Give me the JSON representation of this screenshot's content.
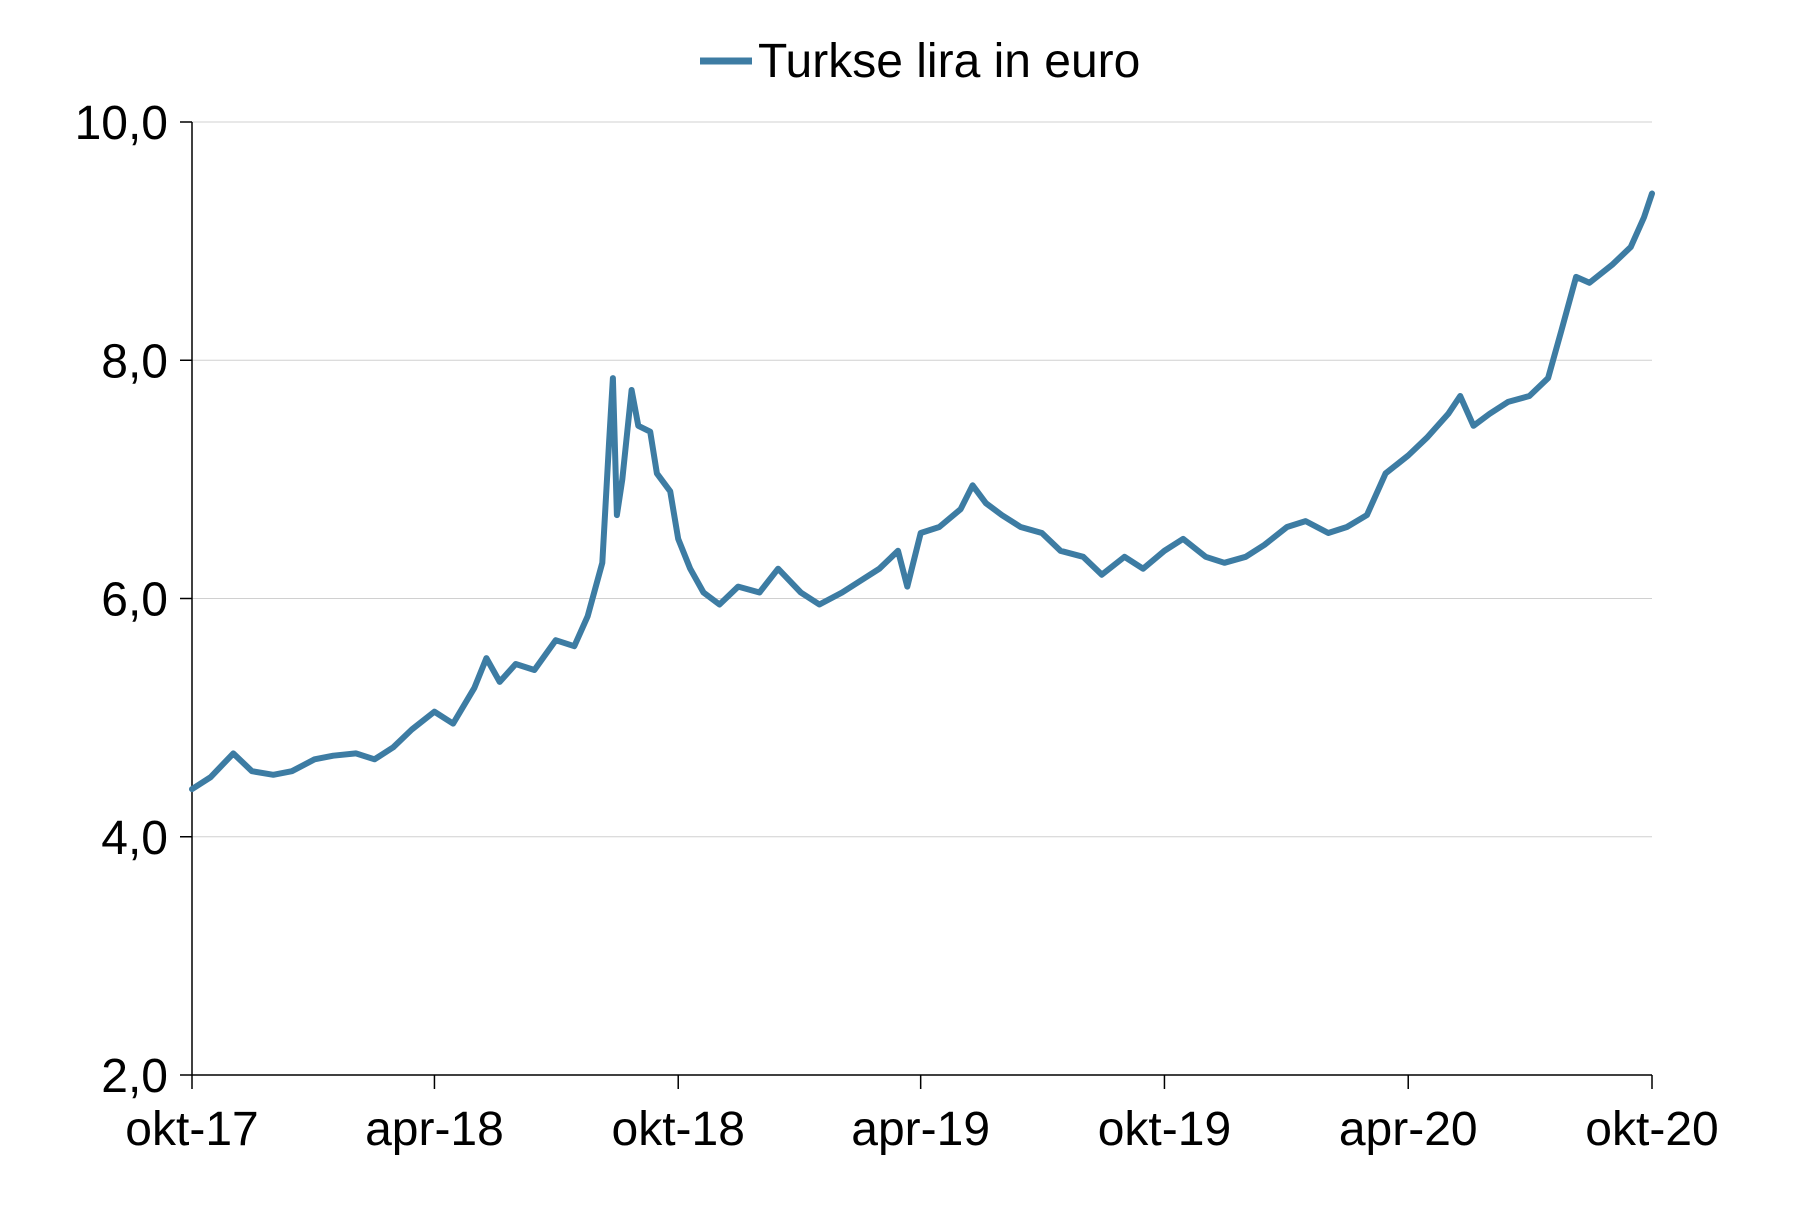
{
  "chart_data": {
    "type": "line",
    "title": "",
    "xlabel": "",
    "ylabel": "",
    "ylim": [
      2.0,
      10.0
    ],
    "yticks": [
      "2,0",
      "4,0",
      "6,0",
      "8,0",
      "10,0"
    ],
    "ytick_values": [
      2,
      4,
      6,
      8,
      10
    ],
    "xlim": [
      "2017-10-01",
      "2020-10-01"
    ],
    "xticks": [
      "okt-17",
      "apr-18",
      "okt-18",
      "apr-19",
      "okt-19",
      "apr-20",
      "okt-20"
    ],
    "xtick_values": [
      "2017-10-01",
      "2018-04-01",
      "2018-10-01",
      "2019-04-01",
      "2019-10-01",
      "2020-04-01",
      "2020-10-01"
    ],
    "grid": true,
    "legend_position": "top-center",
    "series": [
      {
        "name": "Turkse lira in euro",
        "color": "#3d7ca3",
        "x": [
          "2017-10-01",
          "2017-10-15",
          "2017-11-01",
          "2017-11-15",
          "2017-12-01",
          "2017-12-15",
          "2018-01-01",
          "2018-01-15",
          "2018-02-01",
          "2018-02-15",
          "2018-03-01",
          "2018-03-15",
          "2018-04-01",
          "2018-04-15",
          "2018-05-01",
          "2018-05-10",
          "2018-05-20",
          "2018-06-01",
          "2018-06-15",
          "2018-07-01",
          "2018-07-15",
          "2018-07-25",
          "2018-08-05",
          "2018-08-10",
          "2018-08-13",
          "2018-08-16",
          "2018-08-20",
          "2018-08-27",
          "2018-09-01",
          "2018-09-10",
          "2018-09-15",
          "2018-09-25",
          "2018-10-01",
          "2018-10-10",
          "2018-10-20",
          "2018-11-01",
          "2018-11-15",
          "2018-12-01",
          "2018-12-15",
          "2019-01-01",
          "2019-01-15",
          "2019-02-01",
          "2019-02-15",
          "2019-03-01",
          "2019-03-15",
          "2019-03-22",
          "2019-04-01",
          "2019-04-15",
          "2019-05-01",
          "2019-05-10",
          "2019-05-20",
          "2019-06-01",
          "2019-06-15",
          "2019-07-01",
          "2019-07-15",
          "2019-08-01",
          "2019-08-15",
          "2019-09-01",
          "2019-09-15",
          "2019-10-01",
          "2019-10-15",
          "2019-11-01",
          "2019-11-15",
          "2019-12-01",
          "2019-12-15",
          "2020-01-01",
          "2020-01-15",
          "2020-02-01",
          "2020-02-15",
          "2020-03-01",
          "2020-03-15",
          "2020-04-01",
          "2020-04-15",
          "2020-05-01",
          "2020-05-10",
          "2020-05-20",
          "2020-06-01",
          "2020-06-15",
          "2020-07-01",
          "2020-07-15",
          "2020-07-25",
          "2020-08-05",
          "2020-08-15",
          "2020-09-01",
          "2020-09-15",
          "2020-09-25",
          "2020-10-01"
        ],
        "values": [
          4.4,
          4.5,
          4.7,
          4.55,
          4.52,
          4.55,
          4.65,
          4.68,
          4.7,
          4.65,
          4.75,
          4.9,
          5.05,
          4.95,
          5.25,
          5.5,
          5.3,
          5.45,
          5.4,
          5.65,
          5.6,
          5.85,
          6.3,
          7.3,
          7.85,
          6.7,
          7.0,
          7.75,
          7.45,
          7.4,
          7.05,
          6.9,
          6.5,
          6.25,
          6.05,
          5.95,
          6.1,
          6.05,
          6.25,
          6.05,
          5.95,
          6.05,
          6.15,
          6.25,
          6.4,
          6.1,
          6.55,
          6.6,
          6.75,
          6.95,
          6.8,
          6.7,
          6.6,
          6.55,
          6.4,
          6.35,
          6.2,
          6.35,
          6.25,
          6.4,
          6.5,
          6.35,
          6.3,
          6.35,
          6.45,
          6.6,
          6.65,
          6.55,
          6.6,
          6.7,
          7.05,
          7.2,
          7.35,
          7.55,
          7.7,
          7.45,
          7.55,
          7.65,
          7.7,
          7.85,
          8.25,
          8.7,
          8.65,
          8.8,
          8.95,
          9.2,
          9.4
        ]
      }
    ]
  }
}
